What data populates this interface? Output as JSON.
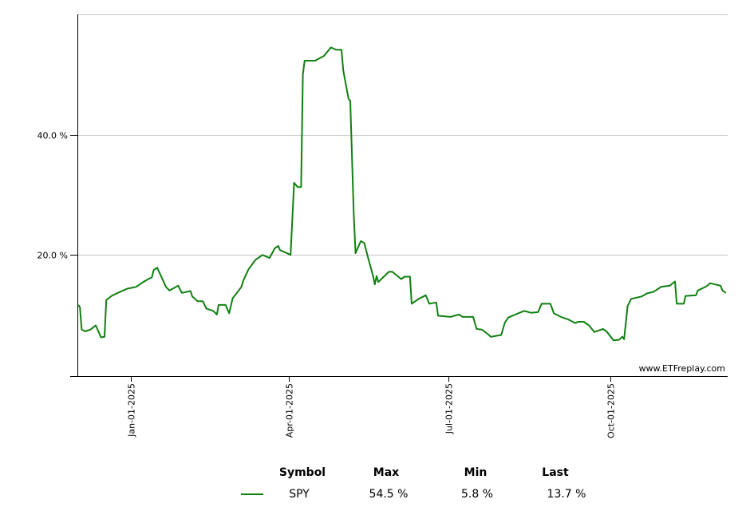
{
  "chart_data": {
    "type": "line",
    "title": "",
    "xlabel": "",
    "ylabel": "",
    "ylim": [
      0,
      60
    ],
    "y_ticks": [
      {
        "value": 20,
        "label": "20.0 %"
      },
      {
        "value": 40,
        "label": "40.0 %"
      }
    ],
    "x_ticks": [
      {
        "date": "2025-01-01",
        "label": "Jan-01-2025"
      },
      {
        "date": "2025-04-01",
        "label": "Apr-01-2025"
      },
      {
        "date": "2025-07-01",
        "label": "Jul-01-2025"
      },
      {
        "date": "2025-10-01",
        "label": "Oct-01-2025"
      }
    ],
    "grid": "horizontal",
    "legend_placement": "bottom",
    "watermark": "www.ETFreplay.com",
    "series": [
      {
        "name": "SPY",
        "color": "#108010",
        "points": [
          [
            "2024-12-02",
            11.7
          ],
          [
            "2024-12-03",
            11.3
          ],
          [
            "2024-12-04",
            7.6
          ],
          [
            "2024-12-06",
            7.3
          ],
          [
            "2024-12-09",
            7.6
          ],
          [
            "2024-12-12",
            8.3
          ],
          [
            "2024-12-15",
            6.3
          ],
          [
            "2024-12-17",
            6.4
          ],
          [
            "2024-12-18",
            12.5
          ],
          [
            "2024-12-21",
            13.2
          ],
          [
            "2024-12-26",
            13.9
          ],
          [
            "2024-12-30",
            14.4
          ],
          [
            "2025-01-04",
            14.7
          ],
          [
            "2025-01-08",
            15.5
          ],
          [
            "2025-01-11",
            16.0
          ],
          [
            "2025-01-13",
            16.3
          ],
          [
            "2025-01-14",
            17.5
          ],
          [
            "2025-01-16",
            17.9
          ],
          [
            "2025-01-21",
            14.7
          ],
          [
            "2025-01-23",
            14.1
          ],
          [
            "2025-01-28",
            14.9
          ],
          [
            "2025-01-30",
            13.7
          ],
          [
            "2025-02-04",
            14.0
          ],
          [
            "2025-02-05",
            13.1
          ],
          [
            "2025-02-08",
            12.3
          ],
          [
            "2025-02-11",
            12.3
          ],
          [
            "2025-02-13",
            11.1
          ],
          [
            "2025-02-17",
            10.7
          ],
          [
            "2025-02-19",
            10.1
          ],
          [
            "2025-02-20",
            11.7
          ],
          [
            "2025-02-24",
            11.7
          ],
          [
            "2025-02-26",
            10.3
          ],
          [
            "2025-02-28",
            12.8
          ],
          [
            "2025-03-05",
            14.7
          ],
          [
            "2025-03-06",
            15.7
          ],
          [
            "2025-03-09",
            17.6
          ],
          [
            "2025-03-13",
            19.2
          ],
          [
            "2025-03-17",
            20.0
          ],
          [
            "2025-03-21",
            19.5
          ],
          [
            "2025-03-24",
            21.1
          ],
          [
            "2025-03-26",
            21.5
          ],
          [
            "2025-03-27",
            20.8
          ],
          [
            "2025-03-31",
            20.3
          ],
          [
            "2025-04-02",
            20.0
          ],
          [
            "2025-04-04",
            32.0
          ],
          [
            "2025-04-06",
            31.3
          ],
          [
            "2025-04-08",
            31.3
          ],
          [
            "2025-04-09",
            50.0
          ],
          [
            "2025-04-10",
            52.3
          ],
          [
            "2025-04-16",
            52.3
          ],
          [
            "2025-04-21",
            53.1
          ],
          [
            "2025-04-25",
            54.5
          ],
          [
            "2025-04-28",
            54.1
          ],
          [
            "2025-05-01",
            54.1
          ],
          [
            "2025-05-02",
            50.7
          ],
          [
            "2025-05-05",
            46.0
          ],
          [
            "2025-05-06",
            45.6
          ],
          [
            "2025-05-08",
            26.7
          ],
          [
            "2025-05-09",
            20.3
          ],
          [
            "2025-05-12",
            22.3
          ],
          [
            "2025-05-14",
            22.0
          ],
          [
            "2025-05-16",
            19.7
          ],
          [
            "2025-05-19",
            16.5
          ],
          [
            "2025-05-20",
            15.1
          ],
          [
            "2025-05-21",
            16.5
          ],
          [
            "2025-05-22",
            15.5
          ],
          [
            "2025-05-28",
            17.2
          ],
          [
            "2025-05-30",
            17.2
          ],
          [
            "2025-06-04",
            16.0
          ],
          [
            "2025-06-06",
            16.4
          ],
          [
            "2025-06-09",
            16.4
          ],
          [
            "2025-06-10",
            11.9
          ],
          [
            "2025-06-14",
            12.7
          ],
          [
            "2025-06-18",
            13.3
          ],
          [
            "2025-06-20",
            11.9
          ],
          [
            "2025-06-24",
            12.1
          ],
          [
            "2025-06-25",
            9.9
          ],
          [
            "2025-07-02",
            9.7
          ],
          [
            "2025-07-07",
            10.1
          ],
          [
            "2025-07-09",
            9.7
          ],
          [
            "2025-07-15",
            9.7
          ],
          [
            "2025-07-17",
            7.7
          ],
          [
            "2025-07-20",
            7.6
          ],
          [
            "2025-07-24",
            6.7
          ],
          [
            "2025-07-25",
            6.4
          ],
          [
            "2025-07-31",
            6.7
          ],
          [
            "2025-08-02",
            8.7
          ],
          [
            "2025-08-04",
            9.6
          ],
          [
            "2025-08-08",
            10.1
          ],
          [
            "2025-08-13",
            10.7
          ],
          [
            "2025-08-17",
            10.4
          ],
          [
            "2025-08-21",
            10.5
          ],
          [
            "2025-08-23",
            11.9
          ],
          [
            "2025-08-28",
            11.9
          ],
          [
            "2025-08-30",
            10.3
          ],
          [
            "2025-09-03",
            9.7
          ],
          [
            "2025-09-07",
            9.3
          ],
          [
            "2025-09-11",
            8.7
          ],
          [
            "2025-09-13",
            8.9
          ],
          [
            "2025-09-16",
            8.9
          ],
          [
            "2025-09-19",
            8.3
          ],
          [
            "2025-09-22",
            7.2
          ],
          [
            "2025-09-27",
            7.7
          ],
          [
            "2025-09-29",
            7.3
          ],
          [
            "2025-10-03",
            5.8
          ],
          [
            "2025-10-06",
            5.9
          ],
          [
            "2025-10-08",
            6.4
          ],
          [
            "2025-10-09",
            6.0
          ],
          [
            "2025-10-11",
            11.5
          ],
          [
            "2025-10-13",
            12.7
          ],
          [
            "2025-10-19",
            13.1
          ],
          [
            "2025-10-22",
            13.6
          ],
          [
            "2025-10-26",
            13.9
          ],
          [
            "2025-10-30",
            14.7
          ],
          [
            "2025-11-04",
            14.9
          ],
          [
            "2025-11-07",
            15.6
          ],
          [
            "2025-11-08",
            11.9
          ],
          [
            "2025-11-12",
            11.9
          ],
          [
            "2025-11-13",
            13.2
          ],
          [
            "2025-11-19",
            13.3
          ],
          [
            "2025-11-20",
            14.1
          ],
          [
            "2025-11-25",
            14.8
          ],
          [
            "2025-11-27",
            15.3
          ],
          [
            "2025-12-03",
            14.9
          ],
          [
            "2025-12-04",
            14.1
          ],
          [
            "2025-12-06",
            13.7
          ]
        ]
      }
    ]
  },
  "legend": {
    "headers": {
      "symbol": "Symbol",
      "max": "Max",
      "min": "Min",
      "last": "Last"
    },
    "rows": [
      {
        "symbol": "SPY",
        "max": "54.5 %",
        "min": "5.8 %",
        "last": "13.7 %",
        "color": "#108010"
      }
    ]
  }
}
